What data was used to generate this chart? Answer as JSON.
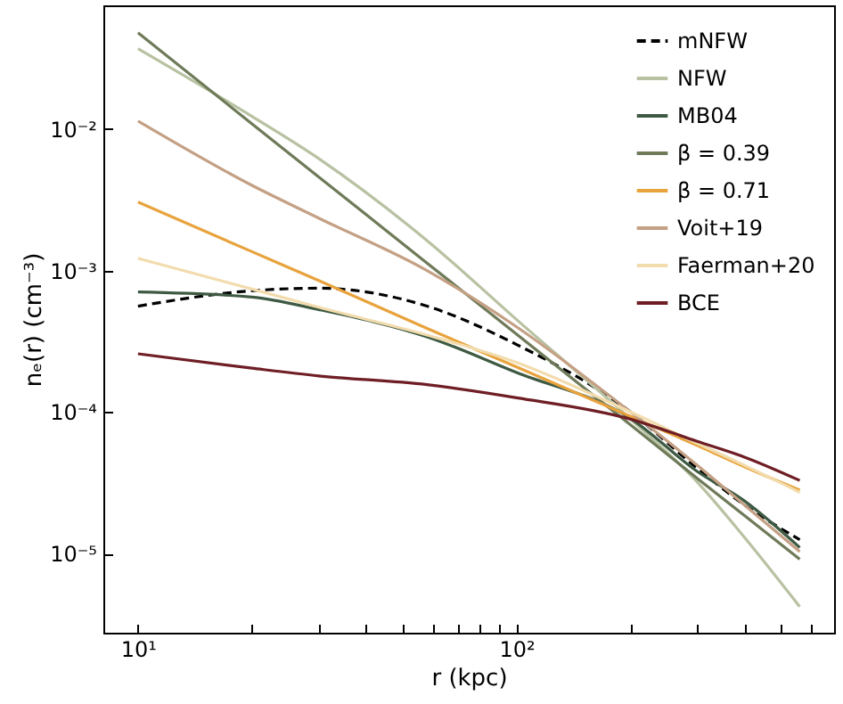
{
  "chart_data": {
    "type": "line",
    "xlabel": "r (kpc)",
    "ylabel": "nₑ(r) (cm⁻³)",
    "log": "xy",
    "grid": false,
    "legend": "top right",
    "xlim": [
      8.1,
      690
    ],
    "ylim": [
      2.75e-06,
      0.075
    ],
    "xticks": [
      {
        "value": 10,
        "label": "10¹"
      },
      {
        "value": 20,
        "label": null
      },
      {
        "value": 30,
        "label": null
      },
      {
        "value": 40,
        "label": null
      },
      {
        "value": 50,
        "label": null
      },
      {
        "value": 60,
        "label": null
      },
      {
        "value": 70,
        "label": null
      },
      {
        "value": 80,
        "label": null
      },
      {
        "value": 90,
        "label": null
      },
      {
        "value": 100,
        "label": "10²"
      },
      {
        "value": 200,
        "label": null
      },
      {
        "value": 300,
        "label": null
      },
      {
        "value": 400,
        "label": null
      },
      {
        "value": 500,
        "label": null
      },
      {
        "value": 600,
        "label": null
      }
    ],
    "yticks": [
      {
        "value": 1e-05,
        "label": "10⁻⁵"
      },
      {
        "value": 0.0001,
        "label": "10⁻⁴"
      },
      {
        "value": 0.001,
        "label": "10⁻³"
      },
      {
        "value": 0.01,
        "label": "10⁻²"
      }
    ],
    "x": [
      10,
      20,
      30,
      58,
      100,
      200,
      300,
      400,
      560
    ],
    "series": [
      {
        "name": "mNFW",
        "color": "#000000",
        "line_style": "dashed",
        "values": [
          0.00056,
          0.00072,
          0.00075,
          0.00056,
          0.0003,
          0.0001,
          4e-05,
          2.2e-05,
          1.25e-05
        ]
      },
      {
        "name": "NFW",
        "color": "#b8c2a2",
        "line_style": "solid",
        "values": [
          0.037,
          0.0123,
          0.0062,
          0.00163,
          0.00045,
          8.9e-05,
          3.2e-05,
          1.3e-05,
          4.2e-06
        ]
      },
      {
        "name": "MB04",
        "color": "#3e5a43",
        "line_style": "solid",
        "values": [
          0.000705,
          0.00065,
          0.00053,
          0.00034,
          0.00019,
          9e-05,
          3.8e-05,
          2.35e-05,
          1.1e-05
        ]
      },
      {
        "name": "β = 0.39",
        "color": "#6e7a58",
        "line_style": "solid",
        "values": [
          0.048,
          0.0109,
          0.0046,
          0.00113,
          0.000355,
          8.1e-05,
          3.4e-05,
          1.85e-05,
          9.1e-06
        ]
      },
      {
        "name": "β = 0.71",
        "color": "#e8a33d",
        "line_style": "solid",
        "values": [
          0.00305,
          0.00136,
          0.00085,
          0.00039,
          0.000208,
          9.3e-05,
          5.8e-05,
          4.1e-05,
          2.8e-05
        ]
      },
      {
        "name": "Voit+19",
        "color": "#c4a084",
        "line_style": "solid",
        "values": [
          0.0114,
          0.004,
          0.00235,
          0.001,
          0.0004,
          0.0001,
          4.2e-05,
          2.2e-05,
          1.03e-05
        ]
      },
      {
        "name": "Faerman+20",
        "color": "#f2dcae",
        "line_style": "solid",
        "values": [
          0.00122,
          0.00074,
          0.00055,
          0.00035,
          0.000224,
          0.0001,
          6e-05,
          4.2e-05,
          2.7e-05
        ]
      },
      {
        "name": "BCE",
        "color": "#6e1e24",
        "line_style": "solid",
        "values": [
          0.000258,
          0.000204,
          0.00018,
          0.000156,
          0.000126,
          8.9e-05,
          6.2e-05,
          4.8e-05,
          3.28e-05
        ]
      }
    ]
  }
}
